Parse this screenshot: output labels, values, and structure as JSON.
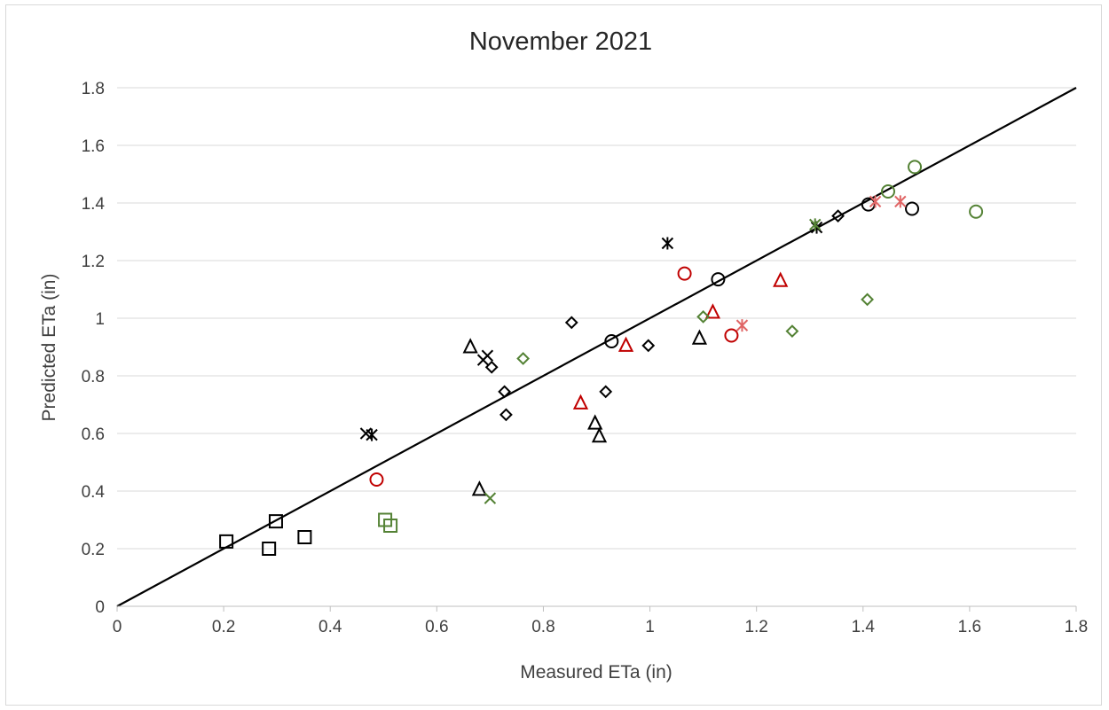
{
  "chart_data": {
    "type": "scatter",
    "title": "November 2021",
    "xlabel": "Measured ETa (in)",
    "ylabel": "Predicted ETa (in)",
    "xlim": [
      0,
      1.8
    ],
    "ylim": [
      0,
      1.8
    ],
    "x_ticks": [
      "0",
      "0.2",
      "0.4",
      "0.6",
      "0.8",
      "1",
      "1.2",
      "1.4",
      "1.6",
      "1.8"
    ],
    "y_ticks": [
      "0",
      "0.2",
      "0.4",
      "0.6",
      "0.8",
      "1",
      "1.2",
      "1.4",
      "1.6",
      "1.8"
    ],
    "grid": "horizontal",
    "legend": "none",
    "reference_line": {
      "type": "1:1",
      "from": [
        0,
        0
      ],
      "to": [
        1.8,
        1.8
      ],
      "color": "#000000"
    },
    "colors": {
      "black": "#000000",
      "red": "#c00000",
      "olive": "#548235",
      "pink": "#e06666",
      "gridline": "#d9d9d9"
    },
    "series": [
      {
        "marker": "square",
        "color": "#000000",
        "points": [
          [
            0.205,
            0.225
          ],
          [
            0.285,
            0.2
          ],
          [
            0.298,
            0.295
          ],
          [
            0.352,
            0.24
          ]
        ]
      },
      {
        "marker": "square",
        "color": "#548235",
        "points": [
          [
            0.503,
            0.3
          ],
          [
            0.513,
            0.28
          ]
        ]
      },
      {
        "marker": "triangle",
        "color": "#000000",
        "points": [
          [
            0.663,
            0.9
          ],
          [
            0.68,
            0.405
          ],
          [
            0.897,
            0.635
          ],
          [
            0.905,
            0.59
          ],
          [
            1.093,
            0.93
          ]
        ]
      },
      {
        "marker": "triangle",
        "color": "#c00000",
        "points": [
          [
            0.87,
            0.705
          ],
          [
            0.955,
            0.905
          ],
          [
            1.118,
            1.02
          ],
          [
            1.245,
            1.13
          ]
        ]
      },
      {
        "marker": "diamond",
        "color": "#000000",
        "points": [
          [
            0.703,
            0.83
          ],
          [
            0.727,
            0.745
          ],
          [
            0.73,
            0.665
          ],
          [
            0.853,
            0.985
          ],
          [
            0.917,
            0.745
          ],
          [
            0.997,
            0.905
          ],
          [
            1.353,
            1.355
          ]
        ]
      },
      {
        "marker": "diamond",
        "color": "#548235",
        "points": [
          [
            0.762,
            0.86
          ],
          [
            1.1,
            1.005
          ],
          [
            1.267,
            0.955
          ],
          [
            1.408,
            1.065
          ]
        ]
      },
      {
        "marker": "circle",
        "color": "#000000",
        "points": [
          [
            0.928,
            0.92
          ],
          [
            1.128,
            1.135
          ],
          [
            1.41,
            1.395
          ],
          [
            1.492,
            1.38
          ]
        ]
      },
      {
        "marker": "circle",
        "color": "#c00000",
        "points": [
          [
            0.487,
            0.44
          ],
          [
            1.065,
            1.155
          ],
          [
            1.153,
            0.94
          ]
        ]
      },
      {
        "marker": "circle",
        "color": "#548235",
        "points": [
          [
            1.447,
            1.44
          ],
          [
            1.497,
            1.525
          ],
          [
            1.612,
            1.37
          ]
        ]
      },
      {
        "marker": "x",
        "color": "#000000",
        "points": [
          [
            0.467,
            0.6
          ],
          [
            0.687,
            0.855
          ],
          [
            0.695,
            0.87
          ]
        ]
      },
      {
        "marker": "x",
        "color": "#548235",
        "points": [
          [
            0.7,
            0.375
          ]
        ]
      },
      {
        "marker": "star",
        "color": "#000000",
        "points": [
          [
            0.478,
            0.595
          ],
          [
            1.033,
            1.26
          ],
          [
            1.313,
            1.315
          ]
        ]
      },
      {
        "marker": "star",
        "color": "#548235",
        "points": [
          [
            1.31,
            1.325
          ]
        ]
      },
      {
        "marker": "star",
        "color": "#e06666",
        "points": [
          [
            1.173,
            0.975
          ],
          [
            1.423,
            1.405
          ],
          [
            1.47,
            1.405
          ]
        ]
      }
    ]
  }
}
